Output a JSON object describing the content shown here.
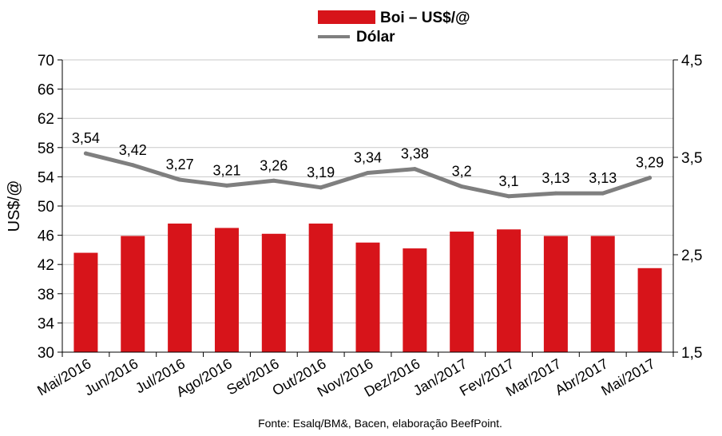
{
  "chart_data": {
    "type": "bar",
    "categories": [
      "Mai/2016",
      "Jun/2016",
      "Jul/2016",
      "Ago/2016",
      "Set/2016",
      "Out/2016",
      "Nov/2016",
      "Dez/2016",
      "Jan/2017",
      "Fev/2017",
      "Mar/2017",
      "Abr/2017",
      "Mai/2017"
    ],
    "series": [
      {
        "name": "Boi – US$/@",
        "type": "bar",
        "axis": "left",
        "color": "#d7141a",
        "values": [
          43.6,
          45.9,
          47.6,
          47.0,
          46.2,
          47.6,
          45.0,
          44.2,
          46.5,
          46.8,
          45.9,
          45.9,
          41.5
        ]
      },
      {
        "name": "Dólar",
        "type": "line",
        "axis": "right",
        "color": "#7f7f7f",
        "values": [
          3.54,
          3.42,
          3.27,
          3.21,
          3.26,
          3.19,
          3.34,
          3.38,
          3.2,
          3.1,
          3.13,
          3.13,
          3.29
        ],
        "labels": [
          "3,54",
          "3,42",
          "3,27",
          "3,21",
          "3,26",
          "3,19",
          "3,34",
          "3,38",
          "3,2",
          "3,1",
          "3,13",
          "3,13",
          "3,29"
        ]
      }
    ],
    "ylabel": "US$/@",
    "ylim": [
      30,
      70
    ],
    "yticks": [
      "30",
      "34",
      "38",
      "42",
      "46",
      "50",
      "54",
      "58",
      "62",
      "66",
      "70"
    ],
    "y2lim": [
      1.5,
      4.5
    ],
    "y2ticks": [
      "1,5",
      "2,5",
      "3,5",
      "4,5"
    ],
    "grid": true,
    "legend": "top-center"
  },
  "legend": {
    "items": [
      {
        "label": "Boi – US$/@",
        "color": "#d7141a"
      },
      {
        "label": "Dólar",
        "color": "#7f7f7f"
      }
    ]
  },
  "source": "Fonte:  Esalq/BM&,  Bacen,  elaboração  BeefPoint."
}
